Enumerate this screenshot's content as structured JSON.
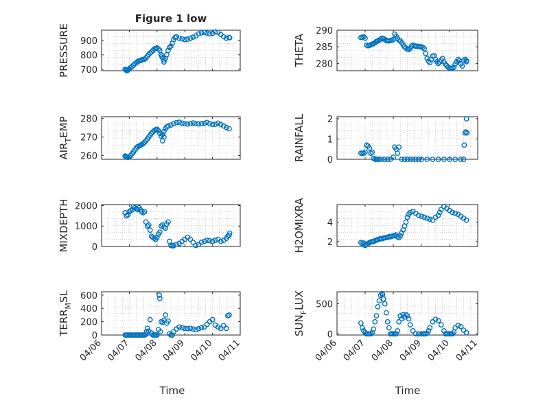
{
  "colors": {
    "marker": "#0072BD",
    "axis": "#262626",
    "grid": "#b8b8b8",
    "background": "#ffffff"
  },
  "xaxis": {
    "range": [
      "04/06",
      "04/11"
    ],
    "ticks": [
      "04/06",
      "04/07",
      "04/08",
      "04/09",
      "04/10",
      "04/11"
    ],
    "label": "Time",
    "tick_rotation_deg": -45
  },
  "chart_data": [
    {
      "type": "scatter",
      "title": "Figure 1 low",
      "ylabel": "PRESSURE",
      "ylabel_sub": "",
      "ylim": [
        690,
        970
      ],
      "yticks": [
        700,
        800,
        900
      ],
      "grid": "minor-dotted",
      "x": [
        0.85,
        0.88,
        0.91,
        0.94,
        0.97,
        1.0,
        1.05,
        1.1,
        1.15,
        1.2,
        1.25,
        1.3,
        1.35,
        1.4,
        1.45,
        1.5,
        1.55,
        1.6,
        1.65,
        1.7,
        1.75,
        1.8,
        1.85,
        1.9,
        1.95,
        2.0,
        2.05,
        2.1,
        2.15,
        2.2,
        2.25,
        2.3,
        2.35,
        2.4,
        2.45,
        2.5,
        2.55,
        2.6,
        2.65,
        2.7,
        2.8,
        2.9,
        3.0,
        3.1,
        3.2,
        3.3,
        3.4,
        3.5,
        3.6,
        3.7,
        3.8,
        3.9,
        4.0,
        4.1,
        4.2,
        4.3,
        4.4,
        4.5,
        4.6,
        4.62,
        2.17,
        2.25
      ],
      "y": [
        700,
        695,
        690,
        693,
        698,
        702,
        712,
        718,
        728,
        738,
        745,
        752,
        758,
        760,
        765,
        768,
        770,
        778,
        790,
        802,
        812,
        820,
        830,
        840,
        845,
        848,
        840,
        830,
        800,
        780,
        765,
        775,
        800,
        830,
        850,
        860,
        880,
        905,
        920,
        925,
        915,
        910,
        905,
        908,
        915,
        922,
        930,
        945,
        952,
        955,
        950,
        945,
        948,
        958,
        955,
        940,
        925,
        915,
        920,
        918,
        790,
        750
      ]
    },
    {
      "type": "scatter",
      "title": "",
      "ylabel": "THETA",
      "ylabel_sub": "",
      "ylim": [
        277.8,
        290
      ],
      "yticks": [
        280,
        285,
        290
      ],
      "grid": "minor-dotted",
      "x": [
        0.85,
        0.9,
        0.95,
        1.0,
        1.05,
        1.1,
        1.15,
        1.2,
        1.25,
        1.3,
        1.35,
        1.4,
        1.45,
        1.5,
        1.55,
        1.6,
        1.65,
        1.7,
        1.75,
        1.8,
        1.85,
        1.9,
        1.95,
        2.0,
        2.05,
        2.1,
        2.15,
        2.2,
        2.25,
        2.3,
        2.35,
        2.4,
        2.45,
        2.5,
        2.55,
        2.6,
        2.65,
        2.7,
        2.75,
        2.8,
        2.85,
        2.9,
        2.95,
        3.0,
        3.05,
        3.1,
        3.15,
        3.2,
        3.25,
        3.3,
        3.35,
        3.4,
        3.45,
        3.5,
        3.55,
        3.6,
        3.65,
        3.7,
        3.75,
        3.8,
        3.85,
        3.9,
        3.95,
        4.0,
        4.05,
        4.1,
        4.15,
        4.2,
        4.25,
        4.3,
        4.35,
        4.4,
        4.45,
        4.5,
        4.55,
        4.6,
        4.6
      ],
      "y": [
        287.8,
        287.9,
        288.0,
        287.6,
        285.5,
        285.3,
        285.4,
        285.6,
        285.8,
        286.0,
        286.2,
        286.6,
        286.8,
        287.0,
        287.3,
        287.6,
        287.5,
        287.2,
        286.9,
        286.8,
        286.8,
        286.9,
        287.0,
        287.2,
        288.8,
        288.2,
        287.5,
        287.0,
        286.8,
        286.2,
        285.6,
        285.0,
        284.6,
        284.3,
        284.2,
        284.5,
        285.2,
        285.5,
        285.3,
        285.2,
        285.2,
        285.1,
        285.0,
        285.0,
        284.8,
        284.4,
        283.0,
        281.5,
        280.7,
        280.2,
        281.2,
        282.2,
        282.3,
        281.2,
        280.5,
        280.0,
        280.4,
        281.0,
        281.5,
        280.5,
        279.8,
        279.3,
        278.8,
        278.6,
        278.5,
        278.6,
        278.8,
        279.8,
        280.5,
        281.2,
        280.8,
        279.9,
        279.2,
        280.8,
        281.2,
        280.8,
        280.5
      ]
    },
    {
      "type": "scatter",
      "title": "",
      "ylabel": "AIR",
      "ylabel_sub": "T",
      "ylabel_tail": "EMP",
      "ylim": [
        258,
        281
      ],
      "yticks": [
        260,
        270,
        280
      ],
      "grid": "minor-dotted",
      "x": [
        0.85,
        0.88,
        0.91,
        0.95,
        1.0,
        1.05,
        1.1,
        1.15,
        1.2,
        1.25,
        1.3,
        1.35,
        1.4,
        1.45,
        1.5,
        1.55,
        1.6,
        1.65,
        1.7,
        1.75,
        1.8,
        1.85,
        1.9,
        1.95,
        2.0,
        2.05,
        2.1,
        2.15,
        2.2,
        2.25,
        2.3,
        2.35,
        2.4,
        2.5,
        2.6,
        2.7,
        2.8,
        2.9,
        3.0,
        3.1,
        3.2,
        3.3,
        3.4,
        3.5,
        3.6,
        3.7,
        3.8,
        3.9,
        4.0,
        4.1,
        4.2,
        4.3,
        4.4,
        4.5,
        4.6,
        2.2,
        2.25
      ],
      "y": [
        259.8,
        259.5,
        259.2,
        259.0,
        259.3,
        260.0,
        261.0,
        262.0,
        263.0,
        264.0,
        264.8,
        265.2,
        265.5,
        266.0,
        266.5,
        267.2,
        268.0,
        269.0,
        270.0,
        271.0,
        272.0,
        272.8,
        273.5,
        274.0,
        274.2,
        273.5,
        272.0,
        270.5,
        271.5,
        273.0,
        274.5,
        275.5,
        276.0,
        276.5,
        277.2,
        277.8,
        278.0,
        277.5,
        277.2,
        277.0,
        277.3,
        277.6,
        277.3,
        277.1,
        277.2,
        277.4,
        277.9,
        277.2,
        276.8,
        276.9,
        277.5,
        276.8,
        276.0,
        275.2,
        274.5,
        268.0,
        270.0
      ]
    },
    {
      "type": "scatter",
      "title": "",
      "ylabel": "RAINFALL",
      "ylabel_sub": "",
      "ylim": [
        0,
        2.1
      ],
      "yticks": [
        0,
        1,
        2
      ],
      "grid": "minor-dotted",
      "x": [
        0.85,
        0.9,
        0.95,
        1.0,
        1.05,
        1.1,
        1.15,
        1.2,
        1.25,
        1.3,
        1.35,
        1.4,
        1.45,
        1.5,
        1.6,
        1.7,
        1.8,
        1.9,
        2.0,
        2.05,
        2.1,
        2.15,
        2.2,
        2.3,
        2.4,
        2.5,
        2.6,
        2.7,
        2.8,
        2.9,
        3.0,
        3.2,
        3.4,
        3.6,
        3.8,
        4.0,
        4.2,
        4.4,
        4.5,
        4.52,
        4.55,
        4.58,
        4.6,
        4.62
      ],
      "y": [
        0.3,
        0.3,
        0.3,
        0.35,
        0.7,
        0.65,
        0.55,
        0.3,
        0.35,
        0.05,
        0.0,
        0.0,
        0.0,
        0.0,
        0.0,
        0.0,
        0.0,
        0.0,
        0.1,
        0.6,
        0.5,
        0.3,
        0.6,
        0.0,
        0.0,
        0.0,
        0.0,
        0.0,
        0.0,
        0.0,
        0.0,
        0.0,
        0.0,
        0.0,
        0.0,
        0.0,
        0.0,
        0.0,
        0.0,
        0.7,
        1.3,
        1.35,
        2.0,
        1.3
      ]
    },
    {
      "type": "scatter",
      "title": "",
      "ylabel": "MIXDEPTH",
      "ylabel_sub": "",
      "ylim": [
        0,
        2050
      ],
      "yticks": [
        0,
        1000,
        2000
      ],
      "grid": "minor-dotted",
      "x": [
        0.85,
        0.9,
        0.95,
        1.0,
        1.05,
        1.1,
        1.15,
        1.2,
        1.25,
        1.3,
        1.35,
        1.4,
        1.45,
        1.5,
        1.55,
        1.6,
        1.65,
        1.7,
        1.75,
        1.8,
        1.85,
        1.9,
        1.95,
        2.0,
        2.05,
        2.1,
        2.15,
        2.2,
        2.25,
        2.3,
        2.35,
        2.4,
        2.45,
        2.5,
        2.55,
        2.6,
        2.7,
        2.8,
        2.9,
        3.0,
        3.1,
        3.2,
        3.3,
        3.4,
        3.5,
        3.6,
        3.7,
        3.8,
        3.9,
        4.0,
        4.1,
        4.2,
        4.3,
        4.4,
        4.5,
        4.55,
        4.6,
        4.62
      ],
      "y": [
        1650,
        1500,
        1550,
        1700,
        1750,
        1800,
        1950,
        1900,
        1850,
        1800,
        1900,
        1800,
        1700,
        1650,
        1700,
        1200,
        1000,
        1050,
        800,
        500,
        450,
        400,
        350,
        450,
        600,
        700,
        1000,
        1050,
        950,
        900,
        1100,
        1200,
        250,
        50,
        30,
        40,
        100,
        150,
        250,
        350,
        450,
        350,
        200,
        50,
        100,
        200,
        250,
        300,
        280,
        250,
        300,
        350,
        250,
        300,
        400,
        500,
        550,
        650
      ]
    },
    {
      "type": "scatter",
      "title": "",
      "ylabel": "H2OMIXRA",
      "ylabel_sub": "",
      "ylim": [
        1.5,
        5.8
      ],
      "yticks": [
        2,
        4
      ],
      "grid": "minor-dotted",
      "x": [
        0.85,
        0.9,
        0.95,
        1.0,
        1.05,
        1.1,
        1.15,
        1.2,
        1.25,
        1.3,
        1.35,
        1.4,
        1.45,
        1.5,
        1.55,
        1.6,
        1.65,
        1.7,
        1.75,
        1.8,
        1.85,
        1.9,
        1.95,
        2.0,
        2.05,
        2.1,
        2.15,
        2.2,
        2.25,
        2.3,
        2.35,
        2.4,
        2.45,
        2.5,
        2.55,
        2.6,
        2.7,
        2.8,
        2.9,
        3.0,
        3.1,
        3.2,
        3.3,
        3.4,
        3.5,
        3.6,
        3.65,
        3.7,
        3.8,
        3.9,
        4.0,
        4.1,
        4.2,
        4.3,
        4.4,
        4.5,
        4.6
      ],
      "y": [
        1.9,
        1.8,
        1.85,
        1.6,
        1.7,
        1.8,
        1.9,
        1.95,
        2.0,
        2.0,
        2.1,
        2.15,
        2.2,
        2.25,
        2.3,
        2.3,
        2.35,
        2.4,
        2.4,
        2.45,
        2.5,
        2.5,
        2.55,
        2.6,
        2.6,
        2.7,
        2.5,
        2.4,
        2.6,
        2.9,
        3.2,
        3.6,
        4.0,
        4.5,
        4.8,
        5.0,
        5.1,
        4.9,
        4.7,
        4.6,
        4.5,
        4.4,
        4.3,
        4.2,
        4.5,
        4.7,
        5.0,
        5.3,
        5.6,
        5.4,
        5.2,
        5.0,
        4.9,
        4.8,
        4.6,
        4.4,
        4.2
      ]
    },
    {
      "type": "scatter",
      "title": "",
      "ylabel": "TERR",
      "ylabel_sub": "M",
      "ylabel_tail": "SL",
      "ylim": [
        0,
        650
      ],
      "yticks": [
        0,
        200,
        400,
        600
      ],
      "grid": "minor-dotted",
      "x": [
        0.85,
        0.9,
        0.95,
        1.0,
        1.05,
        1.1,
        1.15,
        1.2,
        1.25,
        1.3,
        1.35,
        1.4,
        1.45,
        1.5,
        1.55,
        1.6,
        1.62,
        1.65,
        1.7,
        1.75,
        1.8,
        1.85,
        1.9,
        1.95,
        2.0,
        2.05,
        2.08,
        2.1,
        2.12,
        2.15,
        2.2,
        2.25,
        2.3,
        2.35,
        2.4,
        2.45,
        2.5,
        2.55,
        2.6,
        2.7,
        2.8,
        2.9,
        3.0,
        3.1,
        3.2,
        3.3,
        3.4,
        3.5,
        3.6,
        3.7,
        3.8,
        3.9,
        4.0,
        4.1,
        4.2,
        4.3,
        4.4,
        4.5,
        4.55,
        4.6
      ],
      "y": [
        0,
        0,
        0,
        0,
        0,
        0,
        0,
        0,
        0,
        0,
        0,
        0,
        0,
        0,
        0,
        10,
        50,
        100,
        60,
        230,
        30,
        0,
        0,
        0,
        0,
        80,
        600,
        550,
        50,
        200,
        190,
        220,
        300,
        180,
        210,
        20,
        0,
        0,
        50,
        90,
        120,
        110,
        100,
        95,
        100,
        90,
        80,
        95,
        110,
        120,
        160,
        200,
        230,
        150,
        120,
        100,
        140,
        100,
        290,
        300
      ]
    },
    {
      "type": "scatter",
      "title": "",
      "ylabel": "SUN",
      "ylabel_sub": "F",
      "ylabel_tail": "LUX",
      "ylim": [
        -20,
        700
      ],
      "yticks": [
        0,
        500
      ],
      "grid": "minor-dotted",
      "x": [
        0.85,
        0.9,
        0.95,
        1.0,
        1.05,
        1.1,
        1.15,
        1.2,
        1.25,
        1.3,
        1.35,
        1.4,
        1.45,
        1.5,
        1.55,
        1.6,
        1.62,
        1.65,
        1.7,
        1.75,
        1.8,
        1.85,
        1.9,
        1.95,
        2.0,
        2.05,
        2.1,
        2.15,
        2.2,
        2.25,
        2.3,
        2.35,
        2.4,
        2.45,
        2.5,
        2.55,
        2.6,
        2.7,
        2.8,
        2.9,
        3.0,
        3.05,
        3.1,
        3.15,
        3.2,
        3.25,
        3.3,
        3.4,
        3.5,
        3.6,
        3.7,
        3.8,
        3.85,
        3.9,
        3.95,
        4.0,
        4.05,
        4.1,
        4.15,
        4.2,
        4.3,
        4.4,
        4.5,
        4.6
      ],
      "y": [
        180,
        100,
        50,
        20,
        0,
        0,
        0,
        0,
        20,
        80,
        200,
        300,
        450,
        550,
        640,
        670,
        650,
        580,
        500,
        350,
        200,
        100,
        0,
        0,
        0,
        0,
        0,
        50,
        200,
        300,
        250,
        320,
        280,
        320,
        300,
        250,
        150,
        50,
        0,
        0,
        0,
        0,
        0,
        0,
        10,
        50,
        100,
        200,
        240,
        220,
        150,
        50,
        0,
        0,
        0,
        0,
        0,
        0,
        30,
        100,
        140,
        120,
        60,
        20
      ]
    }
  ]
}
